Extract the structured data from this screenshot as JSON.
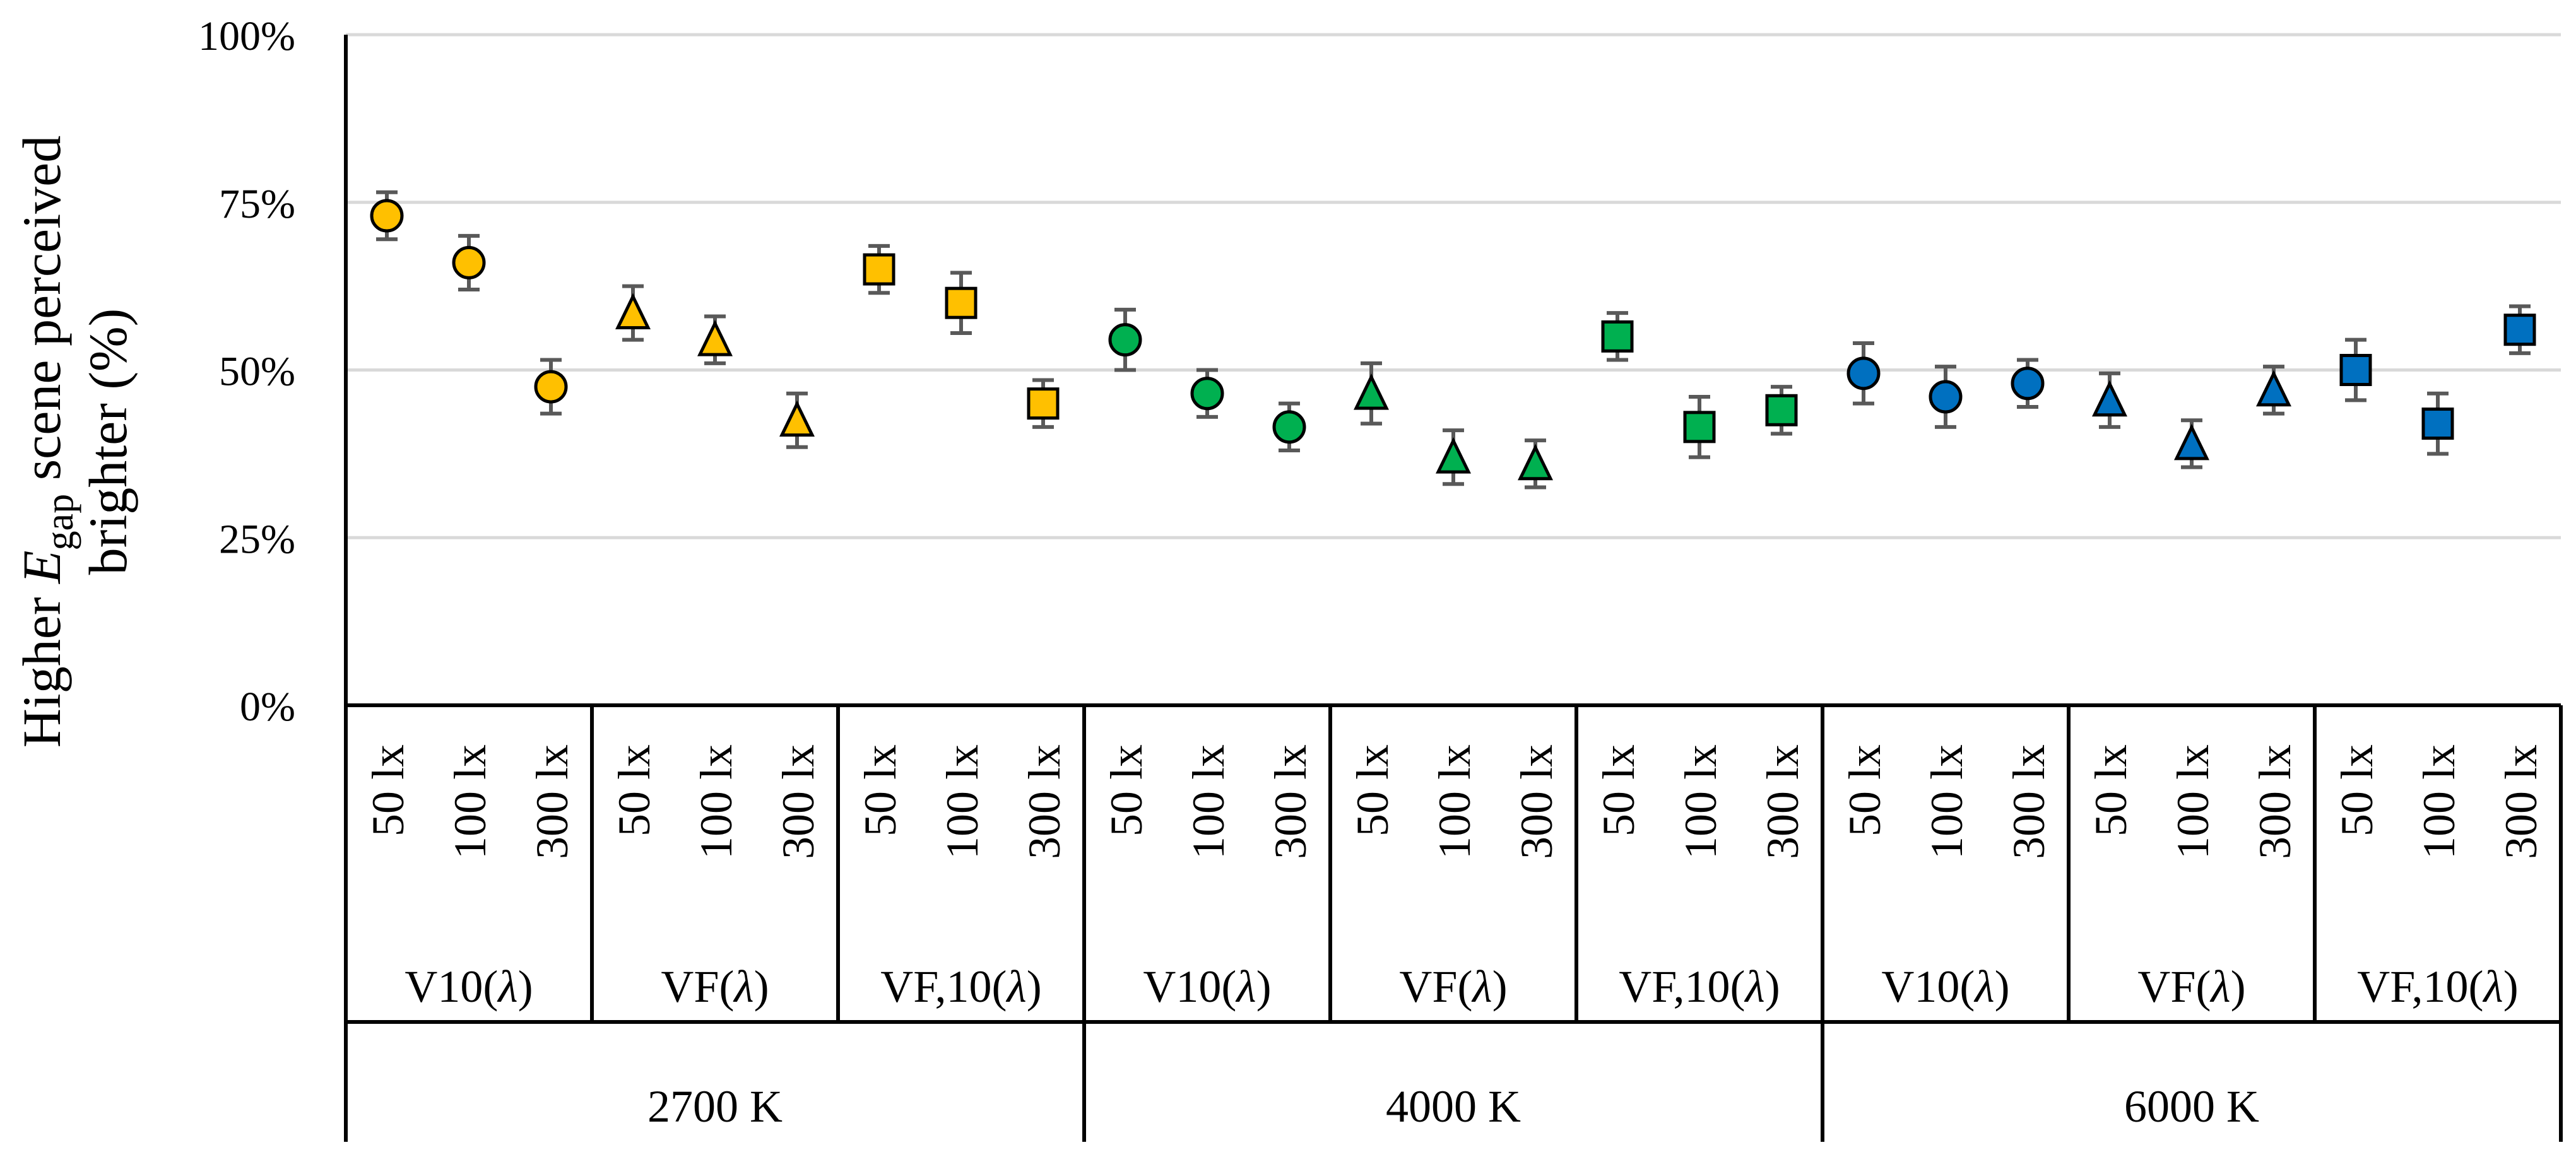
{
  "chart_data": {
    "type": "scatter",
    "title": "",
    "ylabel": {
      "prefix": "Higher ",
      "symbol": "E",
      "subscript": "gap",
      "line1_suffix": " scene perceived",
      "line2": "brighter (%)"
    },
    "xlabel": "",
    "ylim": [
      0,
      100
    ],
    "yticks": [
      {
        "value": 0,
        "label": "0%"
      },
      {
        "value": 25,
        "label": "25%"
      },
      {
        "value": 50,
        "label": "50%"
      },
      {
        "value": 75,
        "label": "75%"
      },
      {
        "value": 100,
        "label": "100%"
      }
    ],
    "grid": true,
    "legend": "none",
    "colors": {
      "2700 K": "#FFC000",
      "4000 K": "#00B050",
      "6000 K": "#0070C0",
      "error_bar": "#595959",
      "gridline": "#d9d9d9",
      "axis": "#000000"
    },
    "groups": [
      "2700 K",
      "4000 K",
      "6000 K"
    ],
    "functions": [
      {
        "label": "V10(λ)",
        "shape": "circle"
      },
      {
        "label": "VF(λ)",
        "shape": "triangle"
      },
      {
        "label": "VF,10(λ)",
        "shape": "square"
      }
    ],
    "illuminances": [
      "50 lx",
      "100 lx",
      "300 lx"
    ],
    "series": [
      {
        "name": "2700 K",
        "values": [
          73,
          66,
          47.5,
          58.5,
          54.5,
          42.5,
          65,
          60,
          45
        ]
      },
      {
        "name": "4000 K",
        "values": [
          54.5,
          46.5,
          41.5,
          46.5,
          37,
          36,
          55,
          41.5,
          44
        ]
      },
      {
        "name": "6000 K",
        "values": [
          49.5,
          46,
          48,
          45.5,
          39,
          47,
          50,
          42,
          56
        ]
      }
    ],
    "error_bars": [
      {
        "name": "2700 K",
        "values": [
          3.5,
          4,
          4,
          4,
          3.5,
          4,
          3.5,
          4.5,
          3.5
        ]
      },
      {
        "name": "4000 K",
        "values": [
          4.5,
          3.5,
          3.5,
          4.5,
          4,
          3.5,
          3.5,
          4.5,
          3.5
        ]
      },
      {
        "name": "6000 K",
        "values": [
          4.5,
          4.5,
          3.5,
          4,
          3.5,
          3.5,
          4.5,
          4.5,
          3.5
        ]
      }
    ]
  }
}
